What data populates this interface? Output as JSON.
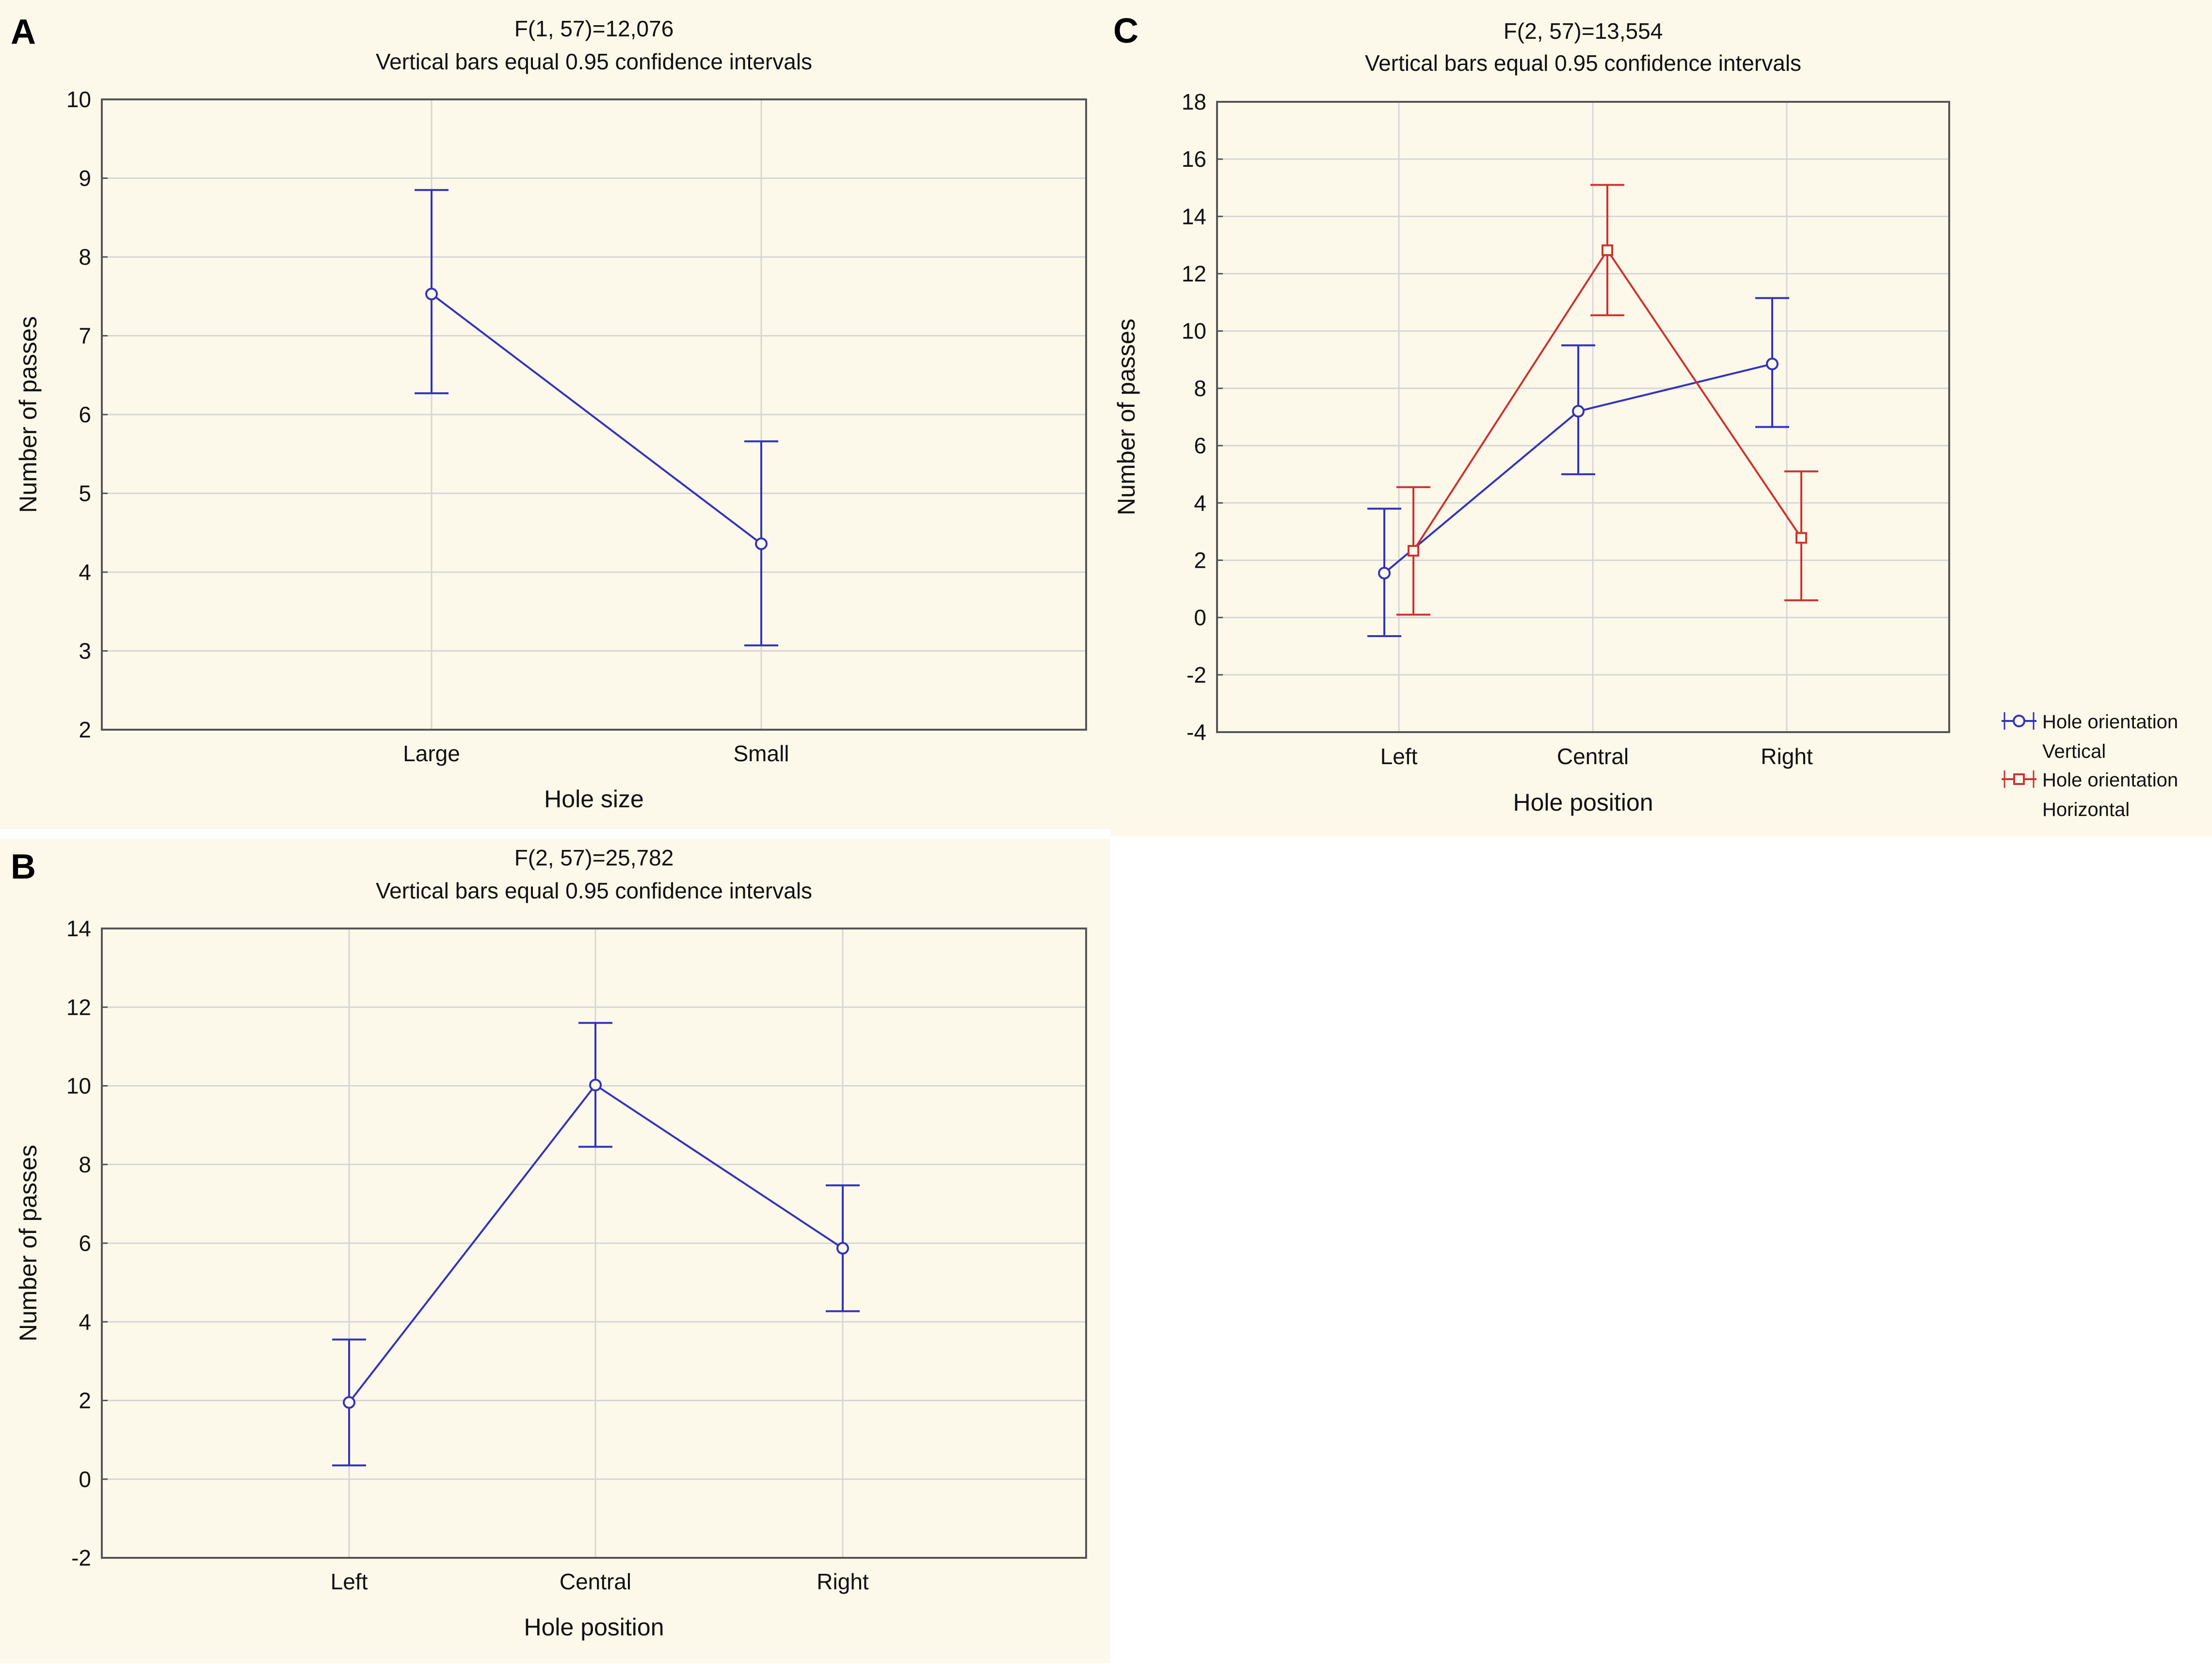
{
  "chart_data": [
    {
      "panel": "A",
      "type": "line",
      "title": "F(1, 57)=12,076",
      "subtitle": "Vertical bars equal 0.95 confidence intervals",
      "xlabel": "Hole size",
      "ylabel": "Number of passes",
      "categories": [
        "Large",
        "Small"
      ],
      "ylim": [
        2,
        10
      ],
      "yticks": [
        2,
        3,
        4,
        5,
        6,
        7,
        8,
        9,
        10
      ],
      "grid": true,
      "series": [
        {
          "name": "",
          "color": "#3333bb",
          "marker": "circle",
          "values": [
            7.53,
            4.36
          ],
          "lower": [
            6.27,
            3.07
          ],
          "upper": [
            8.85,
            5.66
          ]
        }
      ]
    },
    {
      "panel": "B",
      "type": "line",
      "title": "F(2, 57)=25,782",
      "subtitle": "Vertical bars equal 0.95 confidence intervals",
      "xlabel": "Hole position",
      "ylabel": "Number of passes",
      "categories": [
        "Left",
        "Central",
        "Right"
      ],
      "ylim": [
        -2,
        14
      ],
      "yticks": [
        -2,
        0,
        2,
        4,
        6,
        8,
        10,
        12,
        14
      ],
      "grid": true,
      "series": [
        {
          "name": "",
          "color": "#3333bb",
          "marker": "circle",
          "values": [
            1.95,
            10.02,
            5.87
          ],
          "lower": [
            0.35,
            8.45,
            4.27
          ],
          "upper": [
            3.55,
            11.6,
            7.47
          ]
        }
      ]
    },
    {
      "panel": "C",
      "type": "line",
      "title": "F(2, 57)=13,554",
      "subtitle": "Vertical bars equal 0.95 confidence intervals",
      "xlabel": "Hole position",
      "ylabel": "Number of passes",
      "categories": [
        "Left",
        "Central",
        "Right"
      ],
      "ylim": [
        -4,
        18
      ],
      "yticks": [
        -4,
        -2,
        0,
        2,
        4,
        6,
        8,
        10,
        12,
        14,
        16,
        18
      ],
      "grid": true,
      "legend_position": "right",
      "series": [
        {
          "name": "Hole orientation",
          "level": "Vertical",
          "color": "#3333bb",
          "marker": "circle",
          "values": [
            1.55,
            7.2,
            8.85
          ],
          "lower": [
            -0.65,
            5.0,
            6.65
          ],
          "upper": [
            3.8,
            9.5,
            11.15
          ]
        },
        {
          "name": "Hole orientation",
          "level": "Horizontal",
          "color": "#cc3333",
          "marker": "square",
          "values": [
            2.33,
            12.82,
            2.78
          ],
          "lower": [
            0.1,
            10.55,
            0.6
          ],
          "upper": [
            4.55,
            15.1,
            5.1
          ]
        }
      ]
    }
  ]
}
